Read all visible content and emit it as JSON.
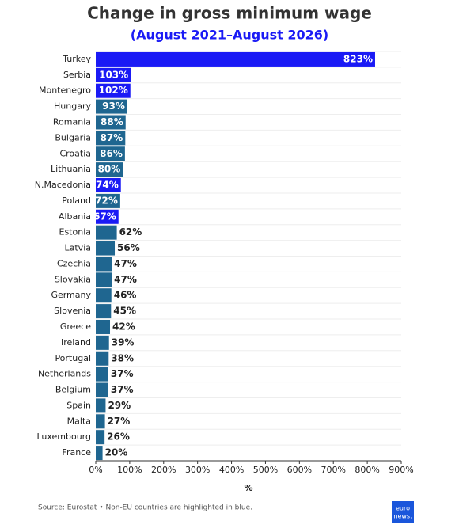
{
  "chart_data": {
    "type": "hbar",
    "title": "Change in gross minimum wage",
    "subtitle": "(August 2021–August 2026)",
    "categories": [
      "Turkey",
      "Serbia",
      "Montenegro",
      "Hungary",
      "Romania",
      "Bulgaria",
      "Croatia",
      "Lithuania",
      "N.Macedonia",
      "Poland",
      "Albania",
      "Estonia",
      "Latvia",
      "Czechia",
      "Slovakia",
      "Germany",
      "Slovenia",
      "Greece",
      "Ireland",
      "Portugal",
      "Netherlands",
      "Belgium",
      "Spain",
      "Malta",
      "Luxembourg",
      "France"
    ],
    "values": [
      823,
      103,
      102,
      93,
      88,
      87,
      86,
      80,
      74,
      72,
      67,
      62,
      56,
      47,
      47,
      46,
      45,
      42,
      39,
      38,
      37,
      37,
      29,
      27,
      26,
      20
    ],
    "value_labels": [
      "823%",
      "103%",
      "102%",
      "93%",
      "88%",
      "87%",
      "86%",
      "80%",
      "74%",
      "72%",
      "67%",
      "62%",
      "56%",
      "47%",
      "47%",
      "46%",
      "45%",
      "42%",
      "39%",
      "38%",
      "37%",
      "37%",
      "29%",
      "27%",
      "26%",
      "20%"
    ],
    "colors": [
      "#1a1af5",
      "#1a1af5",
      "#1a1af5",
      "#1f6690",
      "#1f6690",
      "#1f6690",
      "#1f6690",
      "#1f6690",
      "#1a1af5",
      "#1f6690",
      "#1a1af5",
      "#1f6690",
      "#1f6690",
      "#1f6690",
      "#1f6690",
      "#1f6690",
      "#1f6690",
      "#1f6690",
      "#1f6690",
      "#1f6690",
      "#1f6690",
      "#1f6690",
      "#1f6690",
      "#1f6690",
      "#1f6690",
      "#1f6690"
    ],
    "xlim": [
      0,
      900
    ],
    "xticks": [
      {
        "value": 0,
        "label": "0%"
      },
      {
        "value": 100,
        "label": "100%"
      },
      {
        "value": 200,
        "label": "200%"
      },
      {
        "value": 300,
        "label": "300%"
      },
      {
        "value": 400,
        "label": "400%"
      },
      {
        "value": 500,
        "label": "500%"
      },
      {
        "value": 600,
        "label": "600%"
      },
      {
        "value": 700,
        "label": "700%"
      },
      {
        "value": 800,
        "label": "800%"
      },
      {
        "value": 900,
        "label": "900%"
      }
    ],
    "xlabel": "%",
    "source": "Source: Eurostat • Non-EU countries are highlighted in blue.",
    "logo": [
      "euro",
      "news."
    ]
  }
}
